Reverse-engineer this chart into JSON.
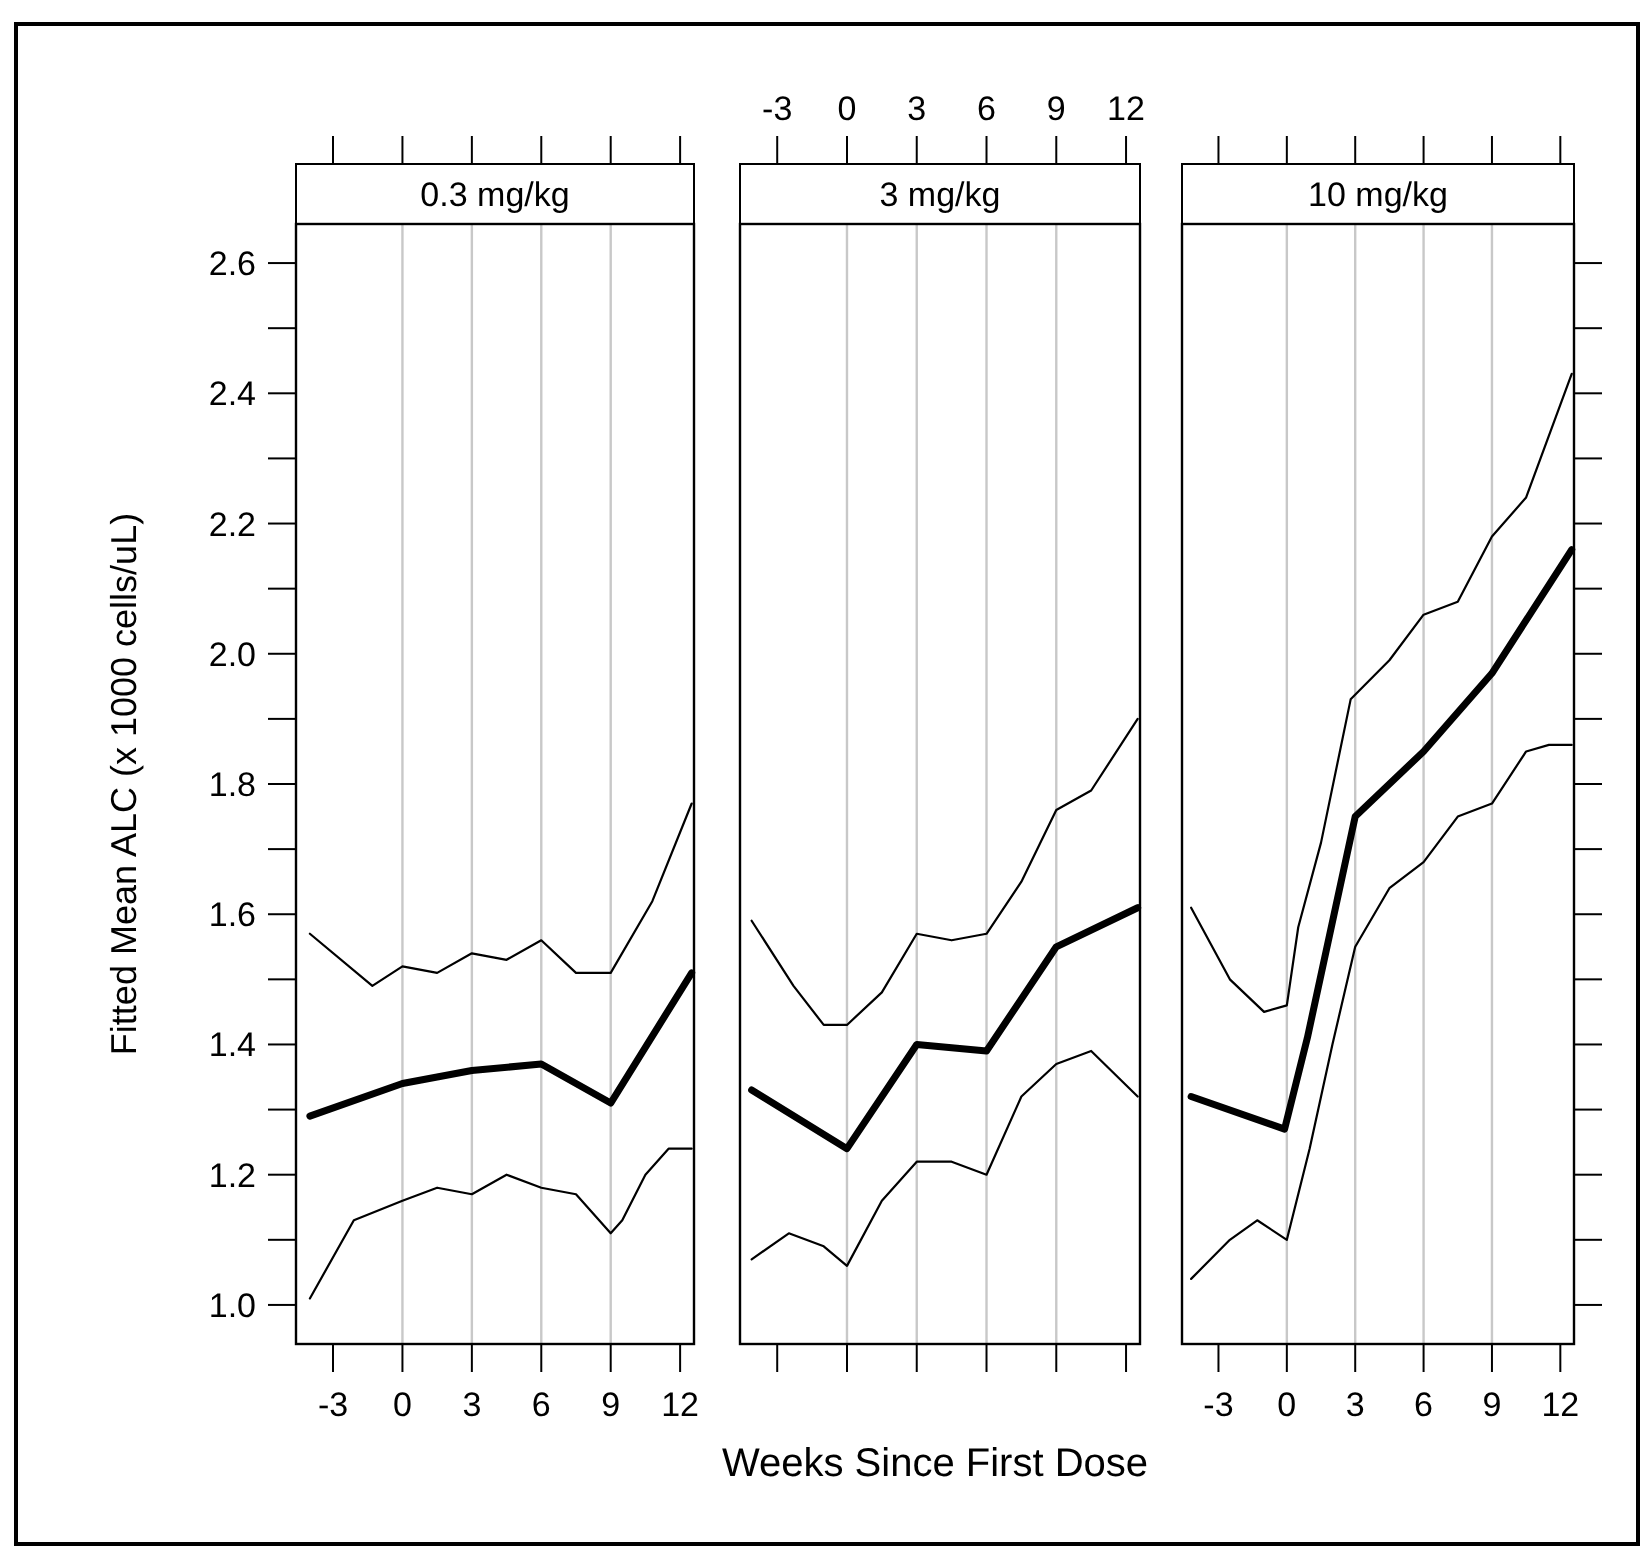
{
  "chart_data": [
    {
      "type": "line",
      "title": "0.3 mg/kg",
      "ylabel": "Fitted Mean ALC (x 1000 cells/uL)",
      "xlim": [
        -4.6,
        12.6
      ],
      "xticks": [
        -3,
        0,
        3,
        6,
        9,
        12
      ],
      "ylim": [
        0.94,
        2.66
      ],
      "yticks": [
        {
          "value": 1.0,
          "label": "1.0"
        },
        {
          "value": 1.1,
          "label": null
        },
        1.2,
        {
          "value": 1.3,
          "label": null
        },
        1.4,
        {
          "value": 1.5,
          "label": null
        },
        1.6,
        {
          "value": 1.7,
          "label": null
        },
        1.8,
        {
          "value": 1.9,
          "label": null
        },
        {
          "value": 2.0,
          "label": "2.0"
        },
        {
          "value": 2.1,
          "label": null
        },
        2.2,
        {
          "value": 2.3,
          "label": null
        },
        2.4,
        {
          "value": 2.5,
          "label": null
        },
        2.6
      ],
      "ref_lines": [
        {
          "axis": "x",
          "value": 0,
          "color": "#c8c8c8"
        },
        {
          "axis": "x",
          "value": 3,
          "color": "#c8c8c8"
        },
        {
          "axis": "x",
          "value": 6,
          "color": "#c8c8c8"
        },
        {
          "axis": "x",
          "value": 9,
          "color": "#c8c8c8"
        }
      ],
      "series": [
        {
          "color": "#000000",
          "x": [
            -4,
            0,
            3,
            6,
            9,
            12.5
          ],
          "values": [
            1.29,
            1.34,
            1.36,
            1.37,
            1.31,
            1.51
          ]
        },
        {
          "color": "#000000",
          "x": [
            -4,
            -1.3,
            0,
            1.5,
            3,
            4.5,
            6,
            7.5,
            9,
            10.8,
            12.5
          ],
          "values": [
            1.57,
            1.49,
            1.52,
            1.51,
            1.54,
            1.53,
            1.56,
            1.51,
            1.51,
            1.62,
            1.77
          ]
        },
        {
          "color": "#000000",
          "x": [
            -4,
            -2.1,
            0,
            1.5,
            3,
            4.5,
            6,
            7.5,
            9,
            9.5,
            10.5,
            11.5,
            12.5
          ],
          "values": [
            1.01,
            1.13,
            1.16,
            1.18,
            1.17,
            1.2,
            1.18,
            1.17,
            1.11,
            1.13,
            1.2,
            1.24,
            1.24
          ]
        }
      ]
    },
    {
      "type": "line",
      "title": "3 mg/kg",
      "xlabel": "Weeks Since First Dose",
      "tick_labels": "x",
      "xlim": [
        -4.6,
        12.6
      ],
      "xticks": [
        -3,
        0,
        3,
        6,
        9,
        12
      ],
      "ylim": [
        0.94,
        2.66
      ],
      "ref_lines": [
        {
          "axis": "x",
          "value": 0,
          "color": "#c8c8c8"
        },
        {
          "axis": "x",
          "value": 3,
          "color": "#c8c8c8"
        },
        {
          "axis": "x",
          "value": 6,
          "color": "#c8c8c8"
        },
        {
          "axis": "x",
          "value": 9,
          "color": "#c8c8c8"
        }
      ],
      "series": [
        {
          "color": "#000000",
          "x": [
            -4.1,
            0,
            3,
            6,
            9,
            12.5
          ],
          "values": [
            1.33,
            1.24,
            1.4,
            1.39,
            1.55,
            1.61
          ]
        },
        {
          "color": "#000000",
          "x": [
            -4.1,
            -2.3,
            -1,
            0,
            1.5,
            3,
            4.5,
            6,
            7.5,
            9,
            10.5,
            12.5
          ],
          "values": [
            1.59,
            1.49,
            1.43,
            1.43,
            1.48,
            1.57,
            1.56,
            1.57,
            1.65,
            1.76,
            1.79,
            1.9
          ]
        },
        {
          "color": "#000000",
          "x": [
            -4.1,
            -2.5,
            -1,
            0,
            1.5,
            3,
            4.5,
            6,
            7.5,
            9,
            10.5,
            12.5
          ],
          "values": [
            1.07,
            1.11,
            1.09,
            1.06,
            1.16,
            1.22,
            1.22,
            1.2,
            1.32,
            1.37,
            1.39,
            1.32
          ]
        }
      ]
    },
    {
      "type": "line",
      "title": "10 mg/kg",
      "tick_labels": "x",
      "xlim": [
        -4.6,
        12.6
      ],
      "xticks": [
        -3,
        0,
        3,
        6,
        9,
        12
      ],
      "ylim": [
        0.94,
        2.66
      ],
      "yticks": [
        {
          "value": 1.0,
          "label": null
        },
        {
          "value": 1.1,
          "label": null
        },
        {
          "value": 1.2,
          "label": null
        },
        {
          "value": 1.3,
          "label": null
        },
        {
          "value": 1.4,
          "label": null
        },
        {
          "value": 1.5,
          "label": null
        },
        {
          "value": 1.6,
          "label": null
        },
        {
          "value": 1.7,
          "label": null
        },
        {
          "value": 1.8,
          "label": null
        },
        {
          "value": 1.9,
          "label": null
        },
        {
          "value": 2.0,
          "label": null
        },
        {
          "value": 2.1,
          "label": null
        },
        {
          "value": 2.2,
          "label": null
        },
        {
          "value": 2.3,
          "label": null
        },
        {
          "value": 2.4,
          "label": null
        },
        {
          "value": 2.5,
          "label": null
        },
        {
          "value": 2.6,
          "label": null
        }
      ],
      "ref_lines": [
        {
          "axis": "x",
          "value": 0,
          "color": "#c8c8c8"
        },
        {
          "axis": "x",
          "value": 3,
          "color": "#c8c8c8"
        },
        {
          "axis": "x",
          "value": 6,
          "color": "#c8c8c8"
        },
        {
          "axis": "x",
          "value": 9,
          "color": "#c8c8c8"
        }
      ],
      "series": [
        {
          "color": "#000000",
          "x": [
            -4.2,
            -0.1,
            0.9,
            3,
            6,
            9,
            12.5
          ],
          "values": [
            1.32,
            1.27,
            1.41,
            1.75,
            1.85,
            1.97,
            2.16
          ]
        },
        {
          "color": "#000000",
          "x": [
            -4.2,
            -2.5,
            -1,
            0,
            0.5,
            1.5,
            2.8,
            4.5,
            6,
            7.5,
            9,
            10.5,
            12.5
          ],
          "values": [
            1.61,
            1.5,
            1.45,
            1.46,
            1.58,
            1.71,
            1.93,
            1.99,
            2.06,
            2.08,
            2.18,
            2.24,
            2.43
          ]
        },
        {
          "color": "#000000",
          "x": [
            -4.2,
            -2.5,
            -1.3,
            0,
            1,
            2,
            3,
            4.5,
            6,
            7.5,
            9,
            10.5,
            11.5,
            12.5
          ],
          "values": [
            1.04,
            1.1,
            1.13,
            1.1,
            1.24,
            1.4,
            1.55,
            1.64,
            1.68,
            1.75,
            1.77,
            1.85,
            1.86,
            1.86
          ]
        }
      ]
    }
  ]
}
